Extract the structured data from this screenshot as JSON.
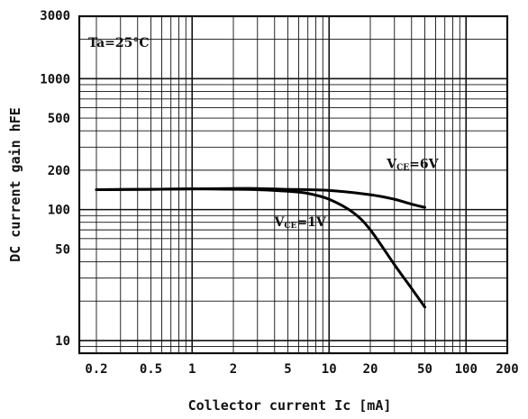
{
  "chart_data": {
    "type": "line",
    "x_scale": "log",
    "y_scale": "log",
    "xlim": [
      0.15,
      200
    ],
    "ylim": [
      8,
      3000
    ],
    "xlabel": "Collector current Ic [mA]",
    "ylabel": "DC current gain hFE",
    "x_ticks": [
      {
        "value": 0.2,
        "label": "0.2"
      },
      {
        "value": 0.5,
        "label": "0.5"
      },
      {
        "value": 1,
        "label": "1"
      },
      {
        "value": 2,
        "label": "2"
      },
      {
        "value": 5,
        "label": "5"
      },
      {
        "value": 10,
        "label": "10"
      },
      {
        "value": 20,
        "label": "20"
      },
      {
        "value": 50,
        "label": "50"
      },
      {
        "value": 100,
        "label": "100"
      },
      {
        "value": 200,
        "label": "200"
      }
    ],
    "y_ticks": [
      {
        "value": 10,
        "label": "10"
      },
      {
        "value": 50,
        "label": "50"
      },
      {
        "value": 100,
        "label": "100"
      },
      {
        "value": 200,
        "label": "200"
      },
      {
        "value": 500,
        "label": "500"
      },
      {
        "value": 1000,
        "label": "1000"
      },
      {
        "value": 3000,
        "label": "3000"
      }
    ],
    "grid": true,
    "annotations": [
      {
        "text": "Ta=25°C"
      }
    ],
    "series": [
      {
        "name": "VCE=6V",
        "label_main": "VCE",
        "label_sub": "=6V",
        "x": [
          0.2,
          0.5,
          1,
          2,
          3,
          5,
          10,
          20,
          30,
          40,
          50
        ],
        "y": [
          142,
          143,
          144,
          145,
          145,
          143,
          140,
          130,
          120,
          110,
          104
        ]
      },
      {
        "name": "VCE=1V",
        "label_main": "VCE",
        "label_sub": "=1V",
        "x": [
          0.2,
          0.5,
          1,
          2,
          3,
          5,
          7,
          10,
          15,
          20,
          30,
          40,
          50
        ],
        "y": [
          142,
          143,
          144,
          143,
          142,
          138,
          133,
          120,
          95,
          70,
          38,
          25,
          18
        ]
      }
    ]
  }
}
